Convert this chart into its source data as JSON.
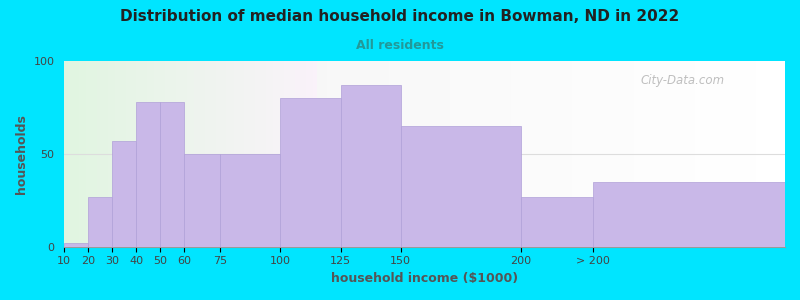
{
  "title": "Distribution of median household income in Bowman, ND in 2022",
  "subtitle": "All residents",
  "xlabel": "household income ($1000)",
  "ylabel": "households",
  "bar_color": "#c9b8e8",
  "bar_edge_color": "#b0a0d8",
  "background_outer": "#00e5ff",
  "ylim": [
    0,
    100
  ],
  "yticks": [
    0,
    50,
    100
  ],
  "heights": [
    2,
    27,
    57,
    78,
    78,
    50,
    50,
    80,
    87,
    65,
    27,
    35
  ],
  "lefts": [
    10,
    20,
    30,
    40,
    50,
    60,
    75,
    100,
    125,
    150,
    200,
    230
  ],
  "widths": [
    10,
    10,
    10,
    10,
    10,
    15,
    25,
    25,
    25,
    50,
    30,
    80
  ],
  "xtick_labels": [
    "10",
    "20",
    "30",
    "40",
    "50",
    "60",
    "75",
    "100",
    "125",
    "150",
    "200",
    "> 200"
  ],
  "watermark": "City-Data.com",
  "title_fontsize": 11,
  "subtitle_fontsize": 9,
  "label_fontsize": 9,
  "tick_fontsize": 8
}
